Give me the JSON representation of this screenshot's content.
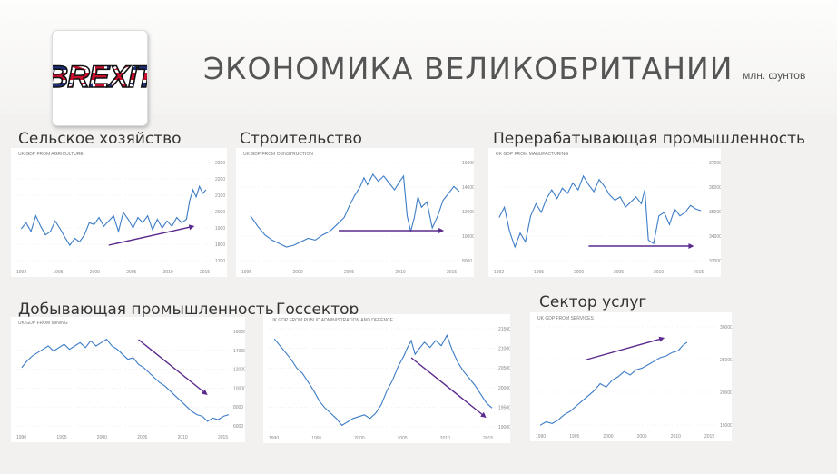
{
  "title": "ЭКОНОМИКА ВЕЛИКОБРИТАНИИ",
  "units": "млн. фунтов",
  "logo": {
    "text": "BREXIT",
    "icon": "union-jack-brexit-logo"
  },
  "colors": {
    "line": "#3c7cc6",
    "arrow": "#5a2a8c",
    "background": "#f2f1ef"
  },
  "panels": [
    {
      "label": "Сельское хозяйство",
      "chart_title": "UK GDP FROM AGRICULTURE",
      "yticks": [
        "2300",
        "2200",
        "2100",
        "2000",
        "1900",
        "1800",
        "1700"
      ],
      "xticks": [
        "1992",
        "1995",
        "2000",
        "2005",
        "2010",
        "2015"
      ],
      "arrow": "up"
    },
    {
      "label": "Строительство",
      "chart_title": "UK GDP FROM CONSTRUCTION",
      "yticks": [
        "16000",
        "14000",
        "12000",
        "10000",
        "8000"
      ],
      "xticks": [
        "1995",
        "2000",
        "2005",
        "2010",
        "2015"
      ],
      "arrow": "flat"
    },
    {
      "label": "Перерабатывающая промышленность",
      "chart_title": "UK GDP FROM MANUFACTURING",
      "yticks": [
        "37000",
        "36000",
        "35000",
        "34000",
        "33000"
      ],
      "xticks": [
        "1992",
        "1995",
        "2000",
        "2005",
        "2010",
        "2015"
      ],
      "arrow": "flat"
    },
    {
      "label": "Добывающая промышленность",
      "chart_title": "UK GDP FROM MINING",
      "yticks": [
        "16000",
        "14000",
        "12000",
        "10000",
        "8000",
        "6000"
      ],
      "xticks": [
        "1990",
        "1995",
        "2000",
        "2005",
        "2010",
        "2015"
      ],
      "arrow": "down"
    },
    {
      "label": "Госсектор",
      "chart_title": "UK GDP FROM PUBLIC ADMINISTRATION AND DEFENCE",
      "yticks": [
        "21500",
        "21000",
        "20500",
        "20000",
        "19500",
        "19000"
      ],
      "xticks": [
        "1990",
        "1995",
        "2000",
        "2005",
        "2010",
        "2015"
      ],
      "arrow": "down"
    },
    {
      "label": "Сектор услуг",
      "chart_title": "UK GDP FROM SERVICES",
      "yticks": [
        "300000",
        "250000",
        "200000",
        "150000"
      ],
      "xticks": [
        "1990",
        "1995",
        "2000",
        "2005",
        "2010",
        "2015"
      ],
      "arrow": "up"
    }
  ]
}
